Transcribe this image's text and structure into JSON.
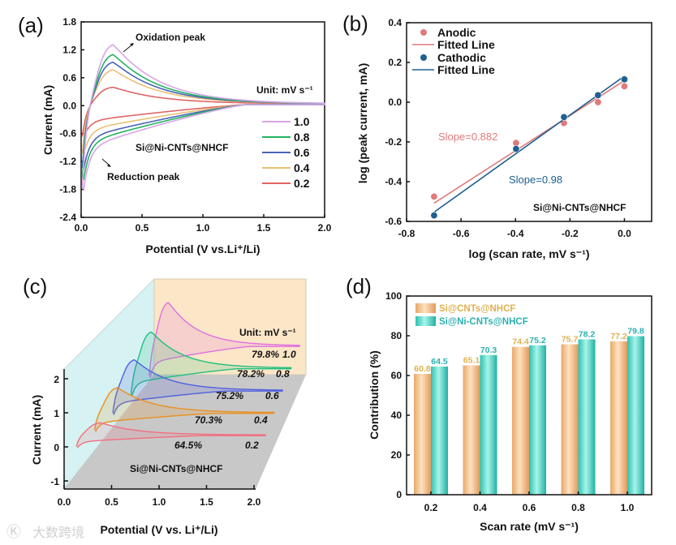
{
  "chart_data": [
    {
      "panel": "(a)",
      "type": "line",
      "xlabel": "Potential (V vs.Li⁺/Li)",
      "ylabel": "Current (mA)",
      "xlim": [
        0,
        2.0
      ],
      "ylim": [
        -2.4,
        1.8
      ],
      "xticks": [
        "0.0",
        "0.5",
        "1.0",
        "1.5",
        "2.0"
      ],
      "yticks": [
        "1.8",
        "1.2",
        "0.6",
        "0.0",
        "-0.6",
        "-1.2",
        "-1.8",
        "-2.4"
      ],
      "legend_title": "Unit: mV s⁻¹",
      "sample": "Si@Ni-CNTs@NHCF",
      "annotations": [
        "Oxidation peak",
        "Reduction peak"
      ],
      "series": [
        {
          "name": "1.0",
          "color": "#d8a4e8",
          "oxidation_peak": 1.32,
          "reduction_min": -1.88
        },
        {
          "name": "0.8",
          "color": "#22b35e",
          "oxidation_peak": 1.1,
          "reduction_min": -1.65
        },
        {
          "name": "0.6",
          "color": "#4a62b8",
          "oxidation_peak": 0.93,
          "reduction_min": -1.42
        },
        {
          "name": "0.4",
          "color": "#e8c074",
          "oxidation_peak": 0.76,
          "reduction_min": -1.1
        },
        {
          "name": "0.2",
          "color": "#e06464",
          "oxidation_peak": 0.37,
          "reduction_min": -0.72
        }
      ]
    },
    {
      "panel": "(b)",
      "type": "scatter",
      "xlabel": "log (scan rate, mV s⁻¹)",
      "ylabel": "log (peak current, mA)",
      "xlim": [
        -0.8,
        0.1
      ],
      "ylim": [
        -0.6,
        0.4
      ],
      "xticks": [
        "-0.8",
        "-0.6",
        "-0.4",
        "-0.2",
        "0.0"
      ],
      "yticks": [
        "0.4",
        "0.2",
        "0.0",
        "-0.2",
        "-0.4",
        "-0.6"
      ],
      "sample": "Si@Ni-CNTs@NHCF",
      "x": [
        -0.699,
        -0.398,
        -0.222,
        -0.097,
        0.0
      ],
      "series": [
        {
          "name": "Anodic",
          "fit_label": "Fitted Line",
          "color": "#e07a7a",
          "y": [
            -0.475,
            -0.205,
            -0.105,
            0.0,
            0.08
          ],
          "slope": 0.882,
          "slope_label": "Slope=0.882"
        },
        {
          "name": "Cathodic",
          "fit_label": "Fitted Line",
          "color": "#1f6090",
          "y": [
            -0.57,
            -0.235,
            -0.075,
            0.035,
            0.115
          ],
          "slope": 0.98,
          "slope_label": "Slope=0.98"
        }
      ]
    },
    {
      "panel": "(c)",
      "type": "line",
      "xlabel": "Potential (V vs. Li⁺/Li)",
      "ylabel": "Current (mA)",
      "xticks": [
        "0.0",
        "0.5",
        "1.0",
        "1.5",
        "2.0"
      ],
      "yticks": [
        "2",
        "1",
        "0",
        "-1"
      ],
      "legend_title": "Unit: mV s⁻¹",
      "sample": "Si@Ni-CNTs@NHCF",
      "series": [
        {
          "name": "0.2",
          "contribution": "64.5%",
          "color": "#f07080"
        },
        {
          "name": "0.4",
          "contribution": "70.3%",
          "color": "#e8901e"
        },
        {
          "name": "0.6",
          "contribution": "75.2%",
          "color": "#5060e0"
        },
        {
          "name": "0.8",
          "contribution": "78.2%",
          "color": "#1fc07e"
        },
        {
          "name": "1.0",
          "contribution": "79.8%",
          "color": "#e070e0"
        }
      ]
    },
    {
      "panel": "(d)",
      "type": "bar",
      "xlabel": "Scan rate (mV s⁻¹)",
      "ylabel": "Contribution (%)",
      "ylim": [
        0,
        100
      ],
      "yticks": [
        "100",
        "80",
        "60",
        "40",
        "20",
        "0"
      ],
      "categories": [
        "0.2",
        "0.4",
        "0.6",
        "0.8",
        "1.0"
      ],
      "series": [
        {
          "name": "Si@CNTs@NHCF",
          "color": "#f2b880",
          "label_color": "#e0b050",
          "values": [
            60.8,
            65.1,
            74.4,
            75.7,
            77.2
          ],
          "labels": [
            "60.8",
            "65.1",
            "74.4",
            "75.7",
            "77.2"
          ]
        },
        {
          "name": "Si@Ni-CNTs@NHCF",
          "color": "#4fd8c8",
          "label_color": "#2ab0b0",
          "values": [
            64.5,
            70.3,
            75.2,
            78.2,
            79.8
          ],
          "labels": [
            "64.5",
            "70.3",
            "75.2",
            "78.2",
            "79.8"
          ]
        }
      ]
    }
  ],
  "watermark": "大数跨境"
}
